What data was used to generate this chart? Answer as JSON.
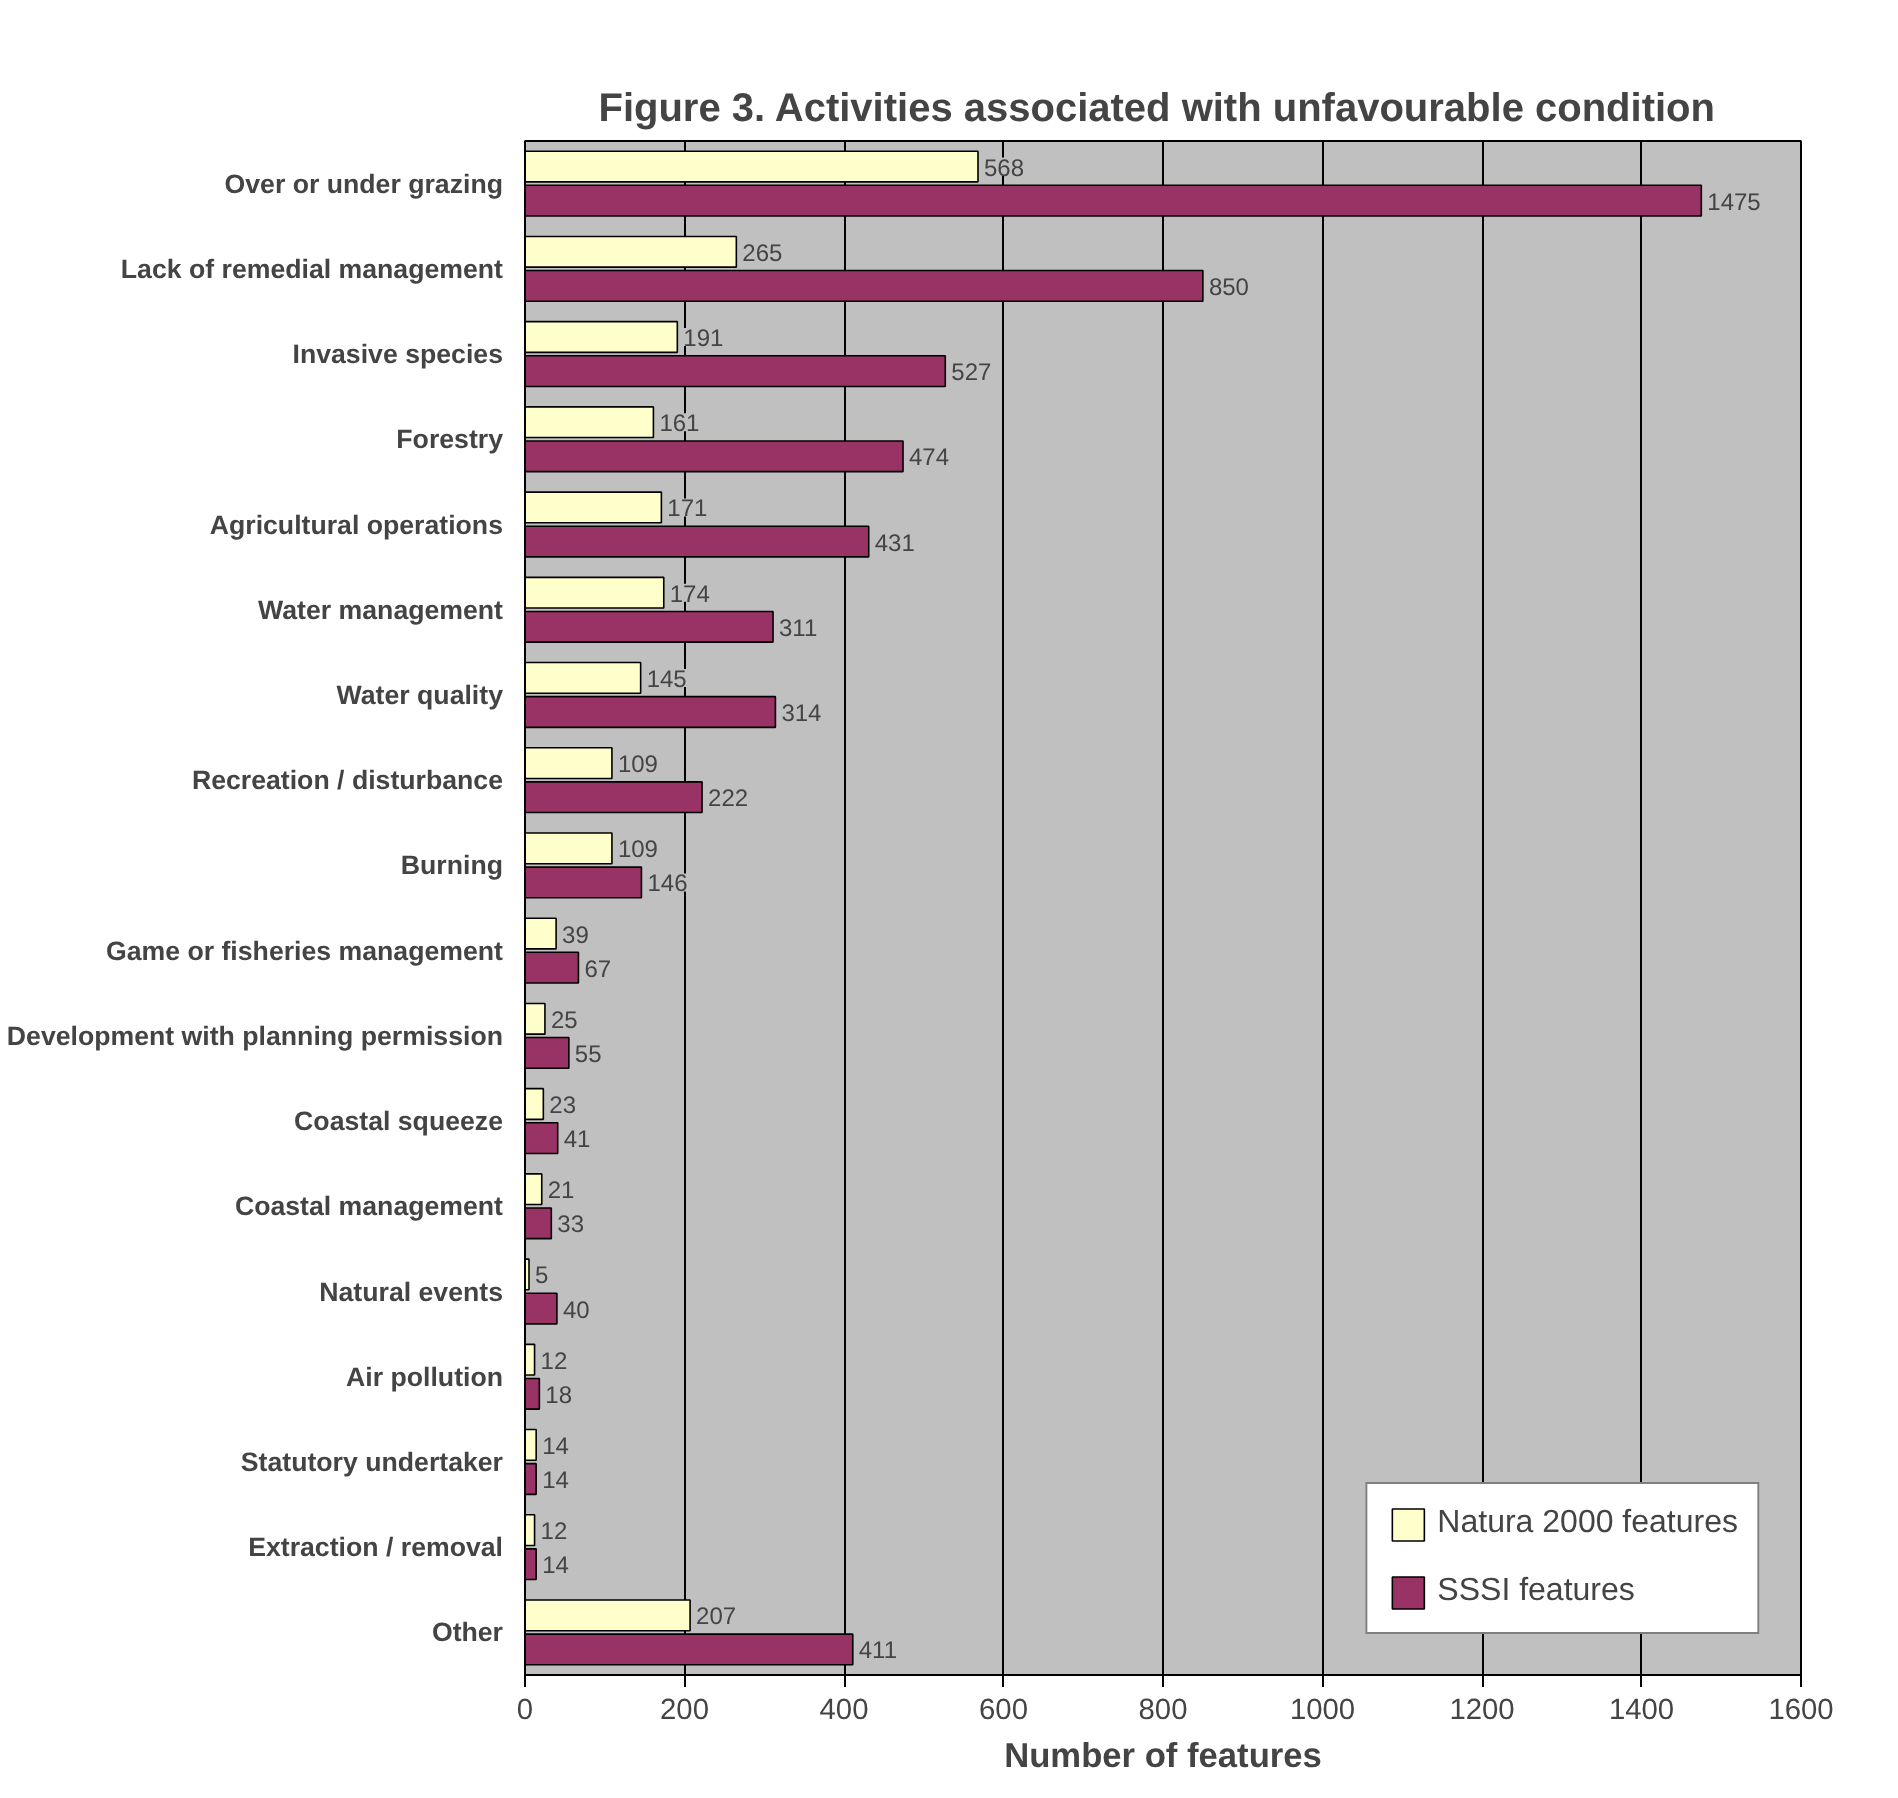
{
  "chart_data": {
    "type": "bar",
    "orientation": "horizontal",
    "title": "Figure 3.  Activities associated with unfavourable condition",
    "xlabel": "Number of features",
    "categories": [
      "Over or under grazing",
      "Lack of remedial management",
      "Invasive species",
      "Forestry",
      "Agricultural operations",
      "Water management",
      "Water quality",
      "Recreation / disturbance",
      "Burning",
      "Game or fisheries management",
      "Development with planning permission",
      "Coastal squeeze",
      "Coastal management",
      "Natural events",
      "Air pollution",
      "Statutory undertaker",
      "Extraction / removal",
      "Other"
    ],
    "series": [
      {
        "name": "Natura 2000 features",
        "color": "#ffffcc",
        "values": [
          568,
          265,
          191,
          161,
          171,
          174,
          145,
          109,
          109,
          39,
          25,
          23,
          21,
          5,
          12,
          14,
          12,
          207
        ]
      },
      {
        "name": "SSSI features",
        "color": "#993366",
        "values": [
          1475,
          850,
          527,
          474,
          431,
          311,
          314,
          222,
          146,
          67,
          55,
          41,
          33,
          40,
          18,
          14,
          14,
          411
        ]
      }
    ],
    "xlim": [
      0,
      1600
    ],
    "xticks": [
      0,
      200,
      400,
      600,
      800,
      1000,
      1200,
      1400,
      1600
    ],
    "grid": "x",
    "legend": "bottom right",
    "data_labels": true
  }
}
